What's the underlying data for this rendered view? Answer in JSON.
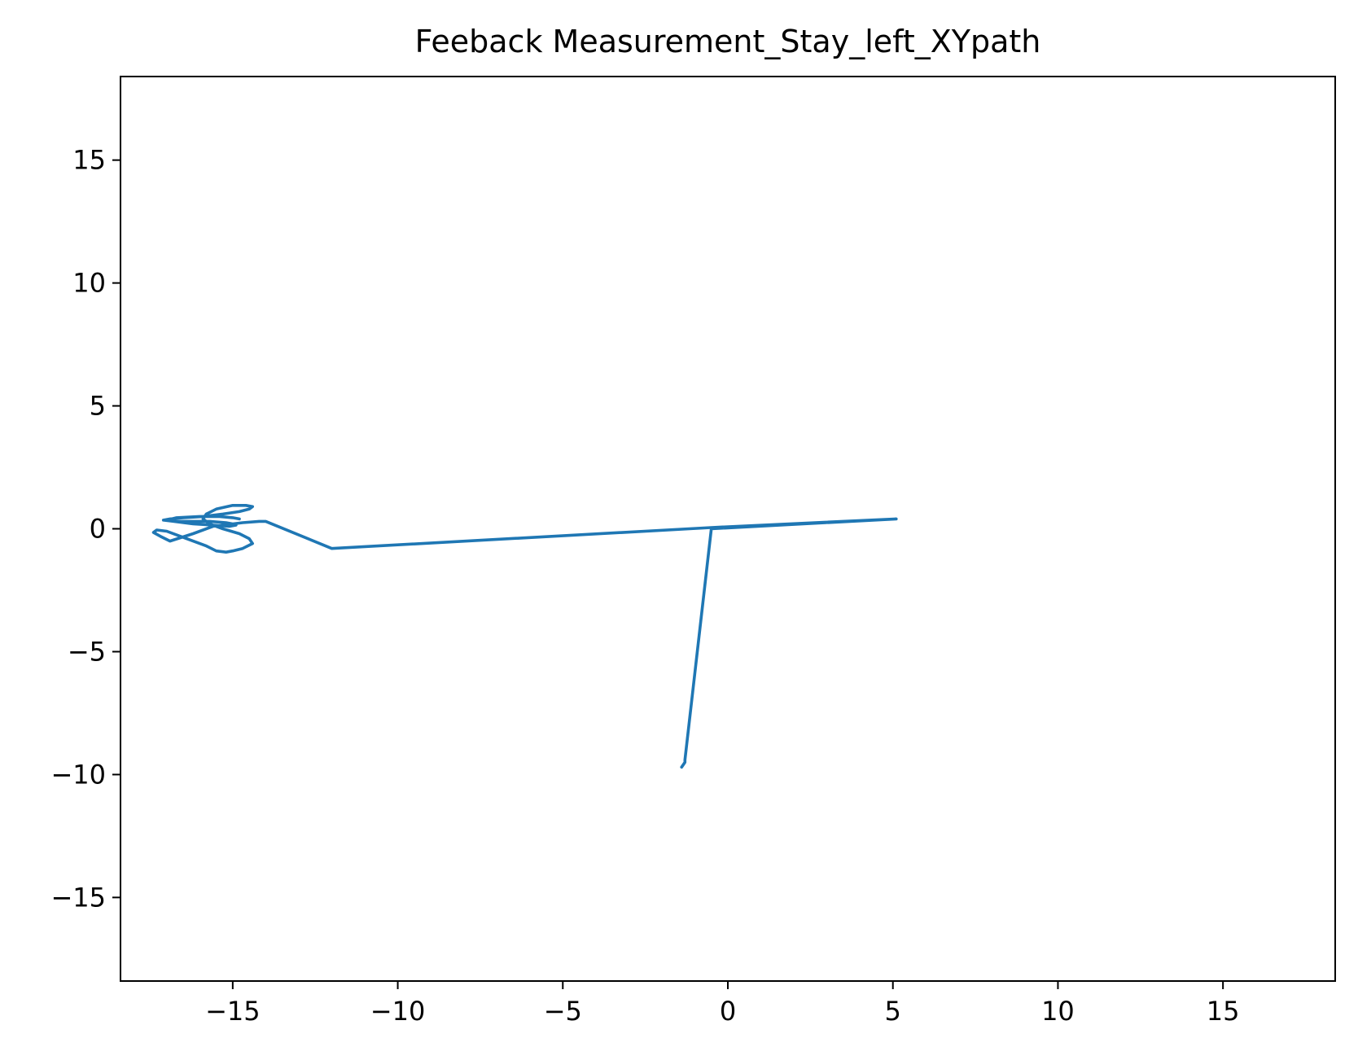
{
  "chart_data": {
    "type": "line",
    "title": "Feeback Measurement_Stay_left_XYpath",
    "xlabel": "",
    "ylabel": "",
    "xlim": [
      -18.4,
      18.4
    ],
    "ylim": [
      -18.4,
      18.4
    ],
    "xticks": [
      -15,
      -10,
      -5,
      0,
      5,
      10,
      15
    ],
    "yticks": [
      -15,
      -10,
      -5,
      0,
      5,
      10,
      15
    ],
    "grid": false,
    "line_color": "#1f77b4",
    "series": [
      {
        "x": [
          -1.4,
          -1.3,
          -1.3,
          -0.5,
          -0.5,
          5.1,
          5.1,
          -0.5,
          -12.0,
          -14.0,
          -14.2,
          -14.7,
          -15.0,
          -15.6,
          -16.2,
          -16.9,
          -17.2,
          -17.4,
          -17.3,
          -17.0,
          -16.4,
          -15.8,
          -15.5,
          -15.2,
          -15.0,
          -14.7,
          -14.4,
          -14.5,
          -14.8,
          -15.3,
          -15.7,
          -15.9,
          -15.8,
          -15.5,
          -15.0,
          -14.6,
          -14.4,
          -14.5,
          -14.8,
          -15.3,
          -15.9,
          -16.5,
          -16.9,
          -17.1,
          -16.8,
          -16.3,
          -15.7,
          -15.2,
          -15.0,
          -14.9,
          -15.1,
          -15.6,
          -16.2,
          -16.8,
          -17.0,
          -16.7,
          -16.0,
          -15.4,
          -15.0,
          -14.8
        ],
        "y": [
          -9.7,
          -9.5,
          -9.4,
          0.0,
          0.0,
          0.4,
          0.4,
          0.05,
          -0.8,
          0.3,
          0.3,
          0.25,
          0.2,
          0.1,
          -0.2,
          -0.5,
          -0.3,
          -0.15,
          -0.05,
          -0.1,
          -0.4,
          -0.7,
          -0.9,
          -0.95,
          -0.9,
          -0.8,
          -0.6,
          -0.4,
          -0.2,
          0.0,
          0.2,
          0.4,
          0.6,
          0.8,
          0.95,
          0.95,
          0.9,
          0.8,
          0.7,
          0.6,
          0.5,
          0.45,
          0.4,
          0.35,
          0.3,
          0.3,
          0.3,
          0.25,
          0.2,
          0.15,
          0.1,
          0.15,
          0.2,
          0.3,
          0.35,
          0.45,
          0.5,
          0.5,
          0.45,
          0.4
        ]
      }
    ]
  }
}
